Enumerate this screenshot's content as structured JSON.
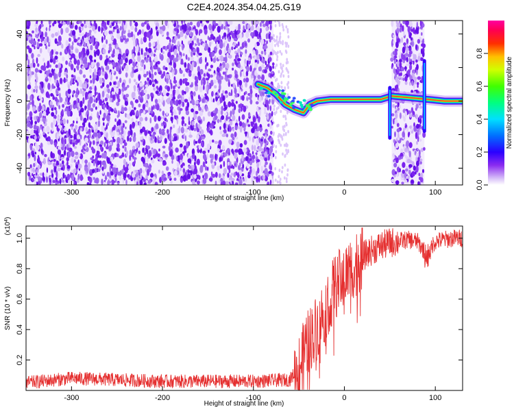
{
  "figure": {
    "title": "C2E4.2024.354.04.25.G19"
  },
  "colors": {
    "snr_line": "#e53030",
    "text": "#000000",
    "frame": "#000000"
  },
  "chart_data": [
    {
      "type": "heatmap",
      "title": "C2E4.2024.354.04.25.G19",
      "xlabel": "Height of straight line (km)",
      "ylabel": "Frequency (Hz)",
      "xlim": [
        -350,
        130
      ],
      "ylim": [
        -50,
        48
      ],
      "x_ticks": [
        -300,
        -200,
        -100,
        0,
        100
      ],
      "y_ticks": [
        -40,
        -20,
        0,
        20,
        40
      ],
      "colorbar": {
        "label": "Normalized spectral amplitude",
        "range": [
          0.0,
          1.0
        ],
        "ticks": [
          "0.0",
          "0.2",
          "0.4",
          "0.6",
          "0.8"
        ],
        "tick_values": [
          0.0,
          0.2,
          0.4,
          0.6,
          0.8
        ],
        "colormap": "rainbow (white-purple to magenta-red)"
      },
      "noise_regions": [
        {
          "x_range": [
            -350,
            -78
          ],
          "description": "dense purple noise"
        },
        {
          "x_range": [
            52,
            88
          ],
          "description": "purple noise band"
        }
      ],
      "signal_trace": [
        {
          "x": -95,
          "y": 10
        },
        {
          "x": -85,
          "y": 8
        },
        {
          "x": -75,
          "y": 4
        },
        {
          "x": -65,
          "y": -2
        },
        {
          "x": -55,
          "y": -5
        },
        {
          "x": -45,
          "y": -7
        },
        {
          "x": -38,
          "y": -2
        },
        {
          "x": -30,
          "y": 0
        },
        {
          "x": -15,
          "y": 1
        },
        {
          "x": 0,
          "y": 1
        },
        {
          "x": 20,
          "y": 1
        },
        {
          "x": 40,
          "y": 1
        },
        {
          "x": 52,
          "y": 3
        },
        {
          "x": 92,
          "y": 1
        },
        {
          "x": 110,
          "y": 0
        },
        {
          "x": 130,
          "y": 0
        }
      ],
      "vertical_streaks": [
        {
          "x": 50,
          "y_range": [
            -22,
            8
          ]
        },
        {
          "x": 88,
          "y_range": [
            -18,
            24
          ]
        }
      ]
    },
    {
      "type": "line",
      "title": "",
      "xlabel": "Height of straight line (km)",
      "ylabel": "SNR (10 * v/v)",
      "y_multiplier": "(x10^4)",
      "xlim": [
        -350,
        130
      ],
      "ylim": [
        0.0,
        1.08
      ],
      "x_ticks": [
        -300,
        -200,
        -100,
        0,
        100
      ],
      "y_ticks": [
        0.2,
        0.4,
        0.6,
        0.8,
        1.0
      ],
      "series": [
        {
          "color": "#e53030",
          "envelope_x": [
            -350,
            -300,
            -250,
            -200,
            -150,
            -100,
            -60,
            -50,
            -40,
            -30,
            -20,
            -10,
            0,
            10,
            20,
            30,
            40,
            50,
            60,
            70,
            80,
            90,
            100,
            110,
            120,
            130
          ],
          "envelope_y": [
            0.05,
            0.08,
            0.07,
            0.06,
            0.06,
            0.06,
            0.07,
            0.15,
            0.32,
            0.42,
            0.55,
            0.68,
            0.75,
            0.82,
            0.88,
            0.92,
            0.95,
            0.97,
            0.98,
            0.99,
            0.98,
            0.9,
            0.98,
            0.99,
            1.0,
            1.0
          ]
        }
      ]
    }
  ]
}
